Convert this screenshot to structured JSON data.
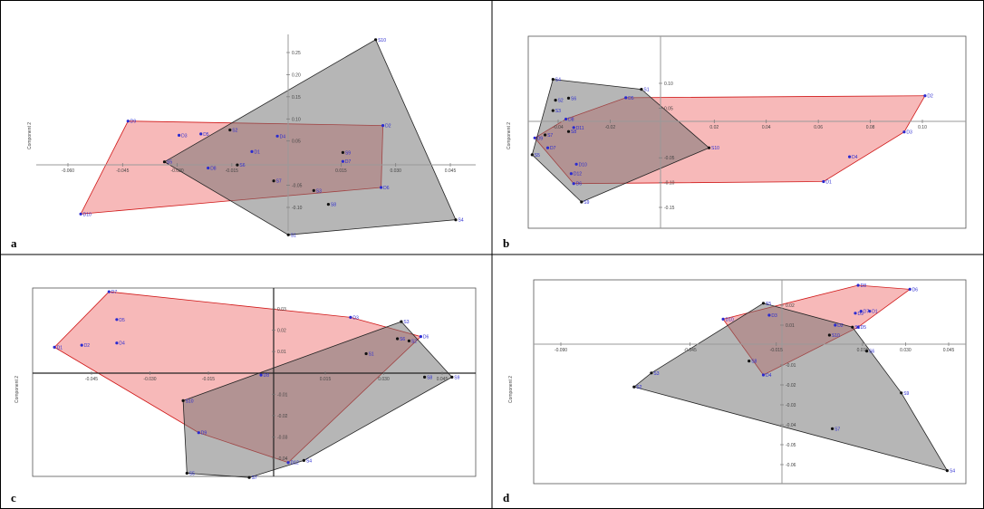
{
  "chart_data": [
    {
      "panel": "a",
      "type": "scatter",
      "ylabel": "Component 2",
      "x_ticks": [
        "-0.060",
        "-0.045",
        "-0.030",
        "-0.015",
        "0.015",
        "0.030",
        "0.045"
      ],
      "y_ticks": [
        "0.25",
        "0.20",
        "0.15",
        "0.10",
        "0.05",
        "-0.05",
        "-0.10"
      ],
      "series": [
        {
          "color": "#f08080",
          "points": [
            {
              "label": "D9",
              "x": -0.0435,
              "y": 0.095
            },
            {
              "label": "D2",
              "x": 0.0265,
              "y": 0.085
            },
            {
              "label": "D6",
              "x": 0.026,
              "y": -0.055
            },
            {
              "label": "D10",
              "x": -0.0565,
              "y": -0.115
            },
            {
              "label": "D3",
              "x": -0.0295,
              "y": 0.063
            },
            {
              "label": "D5",
              "x": -0.0235,
              "y": 0.066
            },
            {
              "label": "D4",
              "x": -0.0025,
              "y": 0.061
            },
            {
              "label": "D1",
              "x": -0.0095,
              "y": 0.026
            },
            {
              "label": "D8",
              "x": -0.0215,
              "y": -0.011
            },
            {
              "label": "D7",
              "x": 0.0155,
              "y": 0.004
            }
          ]
        },
        {
          "color": "#6e6e6e",
          "points": [
            {
              "label": "S5",
              "x": -0.0335,
              "y": 0.003
            },
            {
              "label": "S10",
              "x": 0.0245,
              "y": 0.279
            },
            {
              "label": "S4",
              "x": 0.0465,
              "y": -0.128
            },
            {
              "label": "S1",
              "x": 0.0005,
              "y": -0.162
            },
            {
              "label": "S2",
              "x": -0.0155,
              "y": 0.075
            },
            {
              "label": "S3",
              "x": 0.0075,
              "y": -0.062
            },
            {
              "label": "S6",
              "x": -0.0135,
              "y": -0.004
            },
            {
              "label": "S7",
              "x": -0.0035,
              "y": -0.04
            },
            {
              "label": "S8",
              "x": 0.0115,
              "y": -0.093
            },
            {
              "label": "S9",
              "x": 0.0155,
              "y": 0.024
            }
          ]
        }
      ]
    },
    {
      "panel": "b",
      "type": "scatter",
      "ylabel": "Component 2",
      "x_ticks": [
        "-0.04",
        "-0.02",
        "0.02",
        "0.04",
        "0.06",
        "0.08",
        "0.10"
      ],
      "y_ticks": [
        "0.10",
        "0.05",
        "-0.05",
        "-0.10",
        "-0.15"
      ],
      "series": [
        {
          "color": "#f08080",
          "points": [
            {
              "label": "D2",
              "x": 0.101,
              "y": 0.075
            },
            {
              "label": "D3",
              "x": 0.093,
              "y": 0.002
            },
            {
              "label": "D1",
              "x": 0.062,
              "y": -0.098
            },
            {
              "label": "D9",
              "x": -0.049,
              "y": -0.01
            },
            {
              "label": "D7",
              "x": -0.044,
              "y": -0.03
            },
            {
              "label": "D6",
              "x": -0.034,
              "y": -0.102
            },
            {
              "label": "D5",
              "x": -0.014,
              "y": 0.071
            },
            {
              "label": "D4",
              "x": 0.072,
              "y": -0.048
            },
            {
              "label": "D8",
              "x": -0.037,
              "y": 0.028
            },
            {
              "label": "D10",
              "x": -0.033,
              "y": -0.063
            },
            {
              "label": "D11",
              "x": -0.034,
              "y": 0.011
            },
            {
              "label": "D12",
              "x": -0.035,
              "y": -0.082
            }
          ]
        },
        {
          "color": "#6e6e6e",
          "points": [
            {
              "label": "S4",
              "x": -0.042,
              "y": 0.108
            },
            {
              "label": "S1",
              "x": -0.008,
              "y": 0.088
            },
            {
              "label": "S10",
              "x": 0.018,
              "y": -0.03
            },
            {
              "label": "S9",
              "x": -0.031,
              "y": -0.139
            },
            {
              "label": "S5",
              "x": -0.05,
              "y": -0.044
            },
            {
              "label": "S6",
              "x": -0.036,
              "y": 0.07
            },
            {
              "label": "S2",
              "x": -0.041,
              "y": 0.066
            },
            {
              "label": "S3",
              "x": -0.042,
              "y": 0.045
            },
            {
              "label": "S8",
              "x": -0.036,
              "y": 0.003
            },
            {
              "label": "S7",
              "x": -0.045,
              "y": -0.004
            }
          ]
        }
      ]
    },
    {
      "panel": "c",
      "type": "scatter",
      "ylabel": "Component 2",
      "x_ticks": [
        "-0.045",
        "-0.030",
        "-0.015",
        "0.015",
        "0.030",
        "0.045"
      ],
      "y_ticks": [
        "0.03",
        "0.02",
        "0.01",
        "-0.01",
        "-0.02",
        "-0.03",
        "-0.04"
      ],
      "series": [
        {
          "color": "#f08080",
          "points": [
            {
              "label": "D1",
              "x": -0.0545,
              "y": 0.012
            },
            {
              "label": "D7",
              "x": -0.0405,
              "y": 0.038
            },
            {
              "label": "D6",
              "x": 0.0395,
              "y": 0.017
            },
            {
              "label": "D12",
              "x": 0.0055,
              "y": -0.042
            },
            {
              "label": "D5",
              "x": -0.0385,
              "y": 0.025
            },
            {
              "label": "D2",
              "x": -0.0475,
              "y": 0.013
            },
            {
              "label": "D4",
              "x": -0.0385,
              "y": 0.014
            },
            {
              "label": "D3",
              "x": 0.0215,
              "y": 0.026
            },
            {
              "label": "D9",
              "x": -0.0175,
              "y": -0.028
            },
            {
              "label": "D8",
              "x": -0.0015,
              "y": -0.001
            }
          ]
        },
        {
          "color": "#6e6e6e",
          "points": [
            {
              "label": "S3",
              "x": 0.0345,
              "y": 0.024
            },
            {
              "label": "S9",
              "x": 0.0475,
              "y": -0.002
            },
            {
              "label": "S7",
              "x": -0.0045,
              "y": -0.049
            },
            {
              "label": "S5",
              "x": -0.0205,
              "y": -0.047
            },
            {
              "label": "S10",
              "x": -0.0215,
              "y": -0.013
            },
            {
              "label": "S4",
              "x": 0.0095,
              "y": -0.041
            },
            {
              "label": "S1",
              "x": 0.0255,
              "y": 0.009
            },
            {
              "label": "S2",
              "x": 0.0365,
              "y": 0.015
            },
            {
              "label": "S6",
              "x": 0.0335,
              "y": 0.016
            },
            {
              "label": "S8",
              "x": 0.0405,
              "y": -0.002
            }
          ]
        }
      ]
    },
    {
      "panel": "d",
      "type": "scatter",
      "ylabel": "Component 2",
      "x_ticks": [
        "-0.090",
        "-0.045",
        "-0.015",
        "0.015",
        "0.030",
        "0.045"
      ],
      "y_ticks": [
        "0.02",
        "0.01",
        "-0.01",
        "-0.02",
        "-0.03",
        "-0.04",
        "-0.05",
        "-0.06"
      ],
      "series": [
        {
          "color": "#f08080",
          "points": [
            {
              "label": "D8",
              "x": 0.0135,
              "y": 0.03
            },
            {
              "label": "D6",
              "x": 0.0315,
              "y": 0.028
            },
            {
              "label": "D5",
              "x": 0.0135,
              "y": 0.009
            },
            {
              "label": "D10",
              "x": -0.0335,
              "y": 0.013
            },
            {
              "label": "D4",
              "x": -0.0195,
              "y": -0.015
            },
            {
              "label": "D1",
              "x": 0.0175,
              "y": 0.017
            },
            {
              "label": "D3",
              "x": -0.0175,
              "y": 0.015
            },
            {
              "label": "D2",
              "x": 0.0055,
              "y": 0.01
            },
            {
              "label": "D7",
              "x": 0.0145,
              "y": 0.017
            },
            {
              "label": "D9",
              "x": 0.0125,
              "y": 0.016
            }
          ]
        },
        {
          "color": "#6e6e6e",
          "points": [
            {
              "label": "S5",
              "x": -0.0195,
              "y": 0.021
            },
            {
              "label": "S4",
              "x": 0.0445,
              "y": -0.063
            },
            {
              "label": "S2",
              "x": -0.0645,
              "y": -0.021
            },
            {
              "label": "S1",
              "x": 0.0115,
              "y": 0.009
            },
            {
              "label": "S3",
              "x": -0.0585,
              "y": -0.014
            },
            {
              "label": "S6",
              "x": 0.0165,
              "y": -0.003
            },
            {
              "label": "S7",
              "x": 0.0045,
              "y": -0.042
            },
            {
              "label": "S8",
              "x": -0.0245,
              "y": -0.008
            },
            {
              "label": "S9",
              "x": 0.0285,
              "y": -0.024
            },
            {
              "label": "S10",
              "x": 0.0035,
              "y": 0.005
            }
          ]
        }
      ]
    }
  ]
}
